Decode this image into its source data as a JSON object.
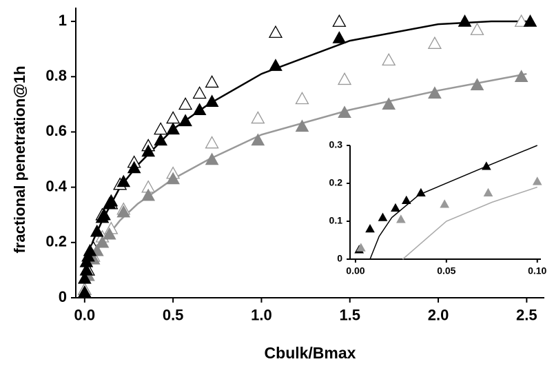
{
  "chart_data": [
    {
      "type": "scatter",
      "xlabel": "Cbulk/Bmax",
      "ylabel": "fractional penetration@1h",
      "xlim": [
        -0.05,
        2.6
      ],
      "ylim": [
        0,
        1.05
      ],
      "xticks": [
        {
          "value": 0,
          "label": "0.0"
        },
        0.5,
        {
          "value": 1,
          "label": "1.0"
        },
        1.5,
        {
          "value": 2,
          "label": "2.0"
        },
        2.5
      ],
      "yticks": [
        0,
        0.2,
        0.4,
        0.6,
        0.8,
        1
      ],
      "series": [
        {
          "style": "line",
          "color": "#000000",
          "x": [
            0,
            0.05,
            0.1,
            0.2,
            0.3,
            0.5,
            0.7,
            1.0,
            1.5,
            2.0,
            2.3,
            2.5
          ],
          "values": [
            0.12,
            0.21,
            0.28,
            0.4,
            0.48,
            0.61,
            0.7,
            0.81,
            0.93,
            0.99,
            1.0,
            1.0
          ]
        },
        {
          "style": "line",
          "color": "#999999",
          "x": [
            0,
            0.05,
            0.1,
            0.2,
            0.3,
            0.5,
            0.7,
            1.0,
            1.5,
            2.0,
            2.5
          ],
          "values": [
            0.05,
            0.15,
            0.2,
            0.28,
            0.34,
            0.43,
            0.5,
            0.59,
            0.68,
            0.75,
            0.81
          ]
        },
        {
          "style": "open",
          "color": "#000000",
          "x": [
            0,
            0.02,
            0.05,
            0.1,
            0.15,
            0.2,
            0.28,
            0.36,
            0.43,
            0.5,
            0.57,
            0.65,
            0.72,
            1.08,
            1.44
          ],
          "values": [
            0.03,
            0.1,
            0.18,
            0.3,
            0.34,
            0.41,
            0.49,
            0.55,
            0.61,
            0.65,
            0.7,
            0.74,
            0.78,
            0.96,
            1.0
          ]
        },
        {
          "style": "open",
          "color": "#999999",
          "x": [
            0,
            0.05,
            0.1,
            0.15,
            0.22,
            0.36,
            0.5,
            0.72,
            0.98,
            1.23,
            1.47,
            1.72,
            1.98,
            2.22,
            2.47
          ],
          "values": [
            0.03,
            0.15,
            0.22,
            0.25,
            0.32,
            0.4,
            0.45,
            0.56,
            0.65,
            0.72,
            0.79,
            0.86,
            0.92,
            0.97,
            1.0
          ]
        },
        {
          "style": "filled",
          "color": "#888888",
          "x": [
            0,
            0.02,
            0.05,
            0.07,
            0.1,
            0.14,
            0.22,
            0.36,
            0.5,
            0.72,
            0.98,
            1.23,
            1.47,
            1.72,
            1.98,
            2.22,
            2.47
          ],
          "values": [
            0.02,
            0.08,
            0.14,
            0.17,
            0.2,
            0.23,
            0.31,
            0.37,
            0.43,
            0.5,
            0.57,
            0.62,
            0.67,
            0.7,
            0.74,
            0.77,
            0.8
          ]
        },
        {
          "style": "filled",
          "color": "#000000",
          "x": [
            0,
            0,
            0.01,
            0.01,
            0.02,
            0.03,
            0.07,
            0.1,
            0.11,
            0.14,
            0.15,
            0.22,
            0.28,
            0.36,
            0.43,
            0.5,
            0.57,
            0.65,
            0.72,
            1.08,
            1.44,
            2.15,
            2.52
          ],
          "values": [
            0.02,
            0.07,
            0.1,
            0.13,
            0.15,
            0.17,
            0.24,
            0.29,
            0.3,
            0.34,
            0.35,
            0.42,
            0.47,
            0.53,
            0.57,
            0.61,
            0.64,
            0.68,
            0.71,
            0.84,
            0.94,
            1.0,
            1.0
          ]
        }
      ]
    },
    {
      "type": "scatter",
      "xlim": [
        -0.003,
        0.102
      ],
      "ylim": [
        0,
        0.3
      ],
      "xticks": [
        {
          "value": 0,
          "label": "0.00"
        },
        {
          "value": 0.05,
          "label": "0.05"
        },
        {
          "value": 0.1,
          "label": "0.10"
        }
      ],
      "yticks": [
        0,
        0.1,
        0.2,
        0.3
      ],
      "series": [
        {
          "style": "line",
          "color": "#000000",
          "x": [
            0.008,
            0.013,
            0.02,
            0.035,
            0.072,
            0.1
          ],
          "values": [
            0,
            0.06,
            0.11,
            0.17,
            0.245,
            0.3
          ]
        },
        {
          "style": "line",
          "color": "#aaaaaa",
          "x": [
            0.026,
            0.05,
            0.075,
            0.1
          ],
          "values": [
            0,
            0.1,
            0.15,
            0.19
          ]
        },
        {
          "style": "filled",
          "color": "#000000",
          "x": [
            0.002,
            0.008,
            0.015,
            0.022,
            0.028,
            0.036,
            0.072
          ],
          "values": [
            0.025,
            0.08,
            0.11,
            0.135,
            0.155,
            0.175,
            0.245
          ]
        },
        {
          "style": "filled",
          "color": "#999999",
          "x": [
            0.003,
            0.025,
            0.049,
            0.073,
            0.1
          ],
          "values": [
            0.03,
            0.105,
            0.145,
            0.175,
            0.205
          ]
        }
      ]
    }
  ]
}
